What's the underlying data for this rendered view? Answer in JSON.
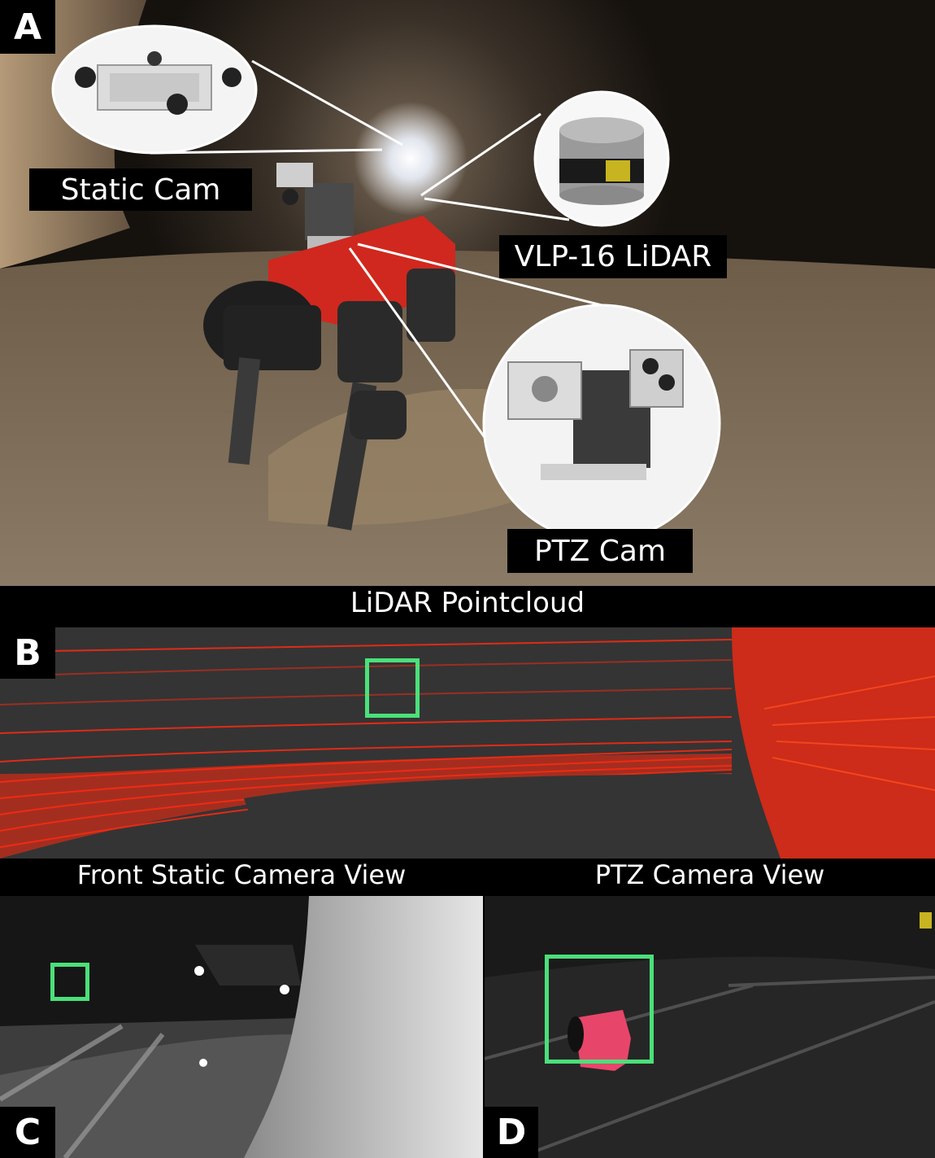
{
  "panels": {
    "a": {
      "letter": "A"
    },
    "b": {
      "letter": "B"
    },
    "c": {
      "letter": "C"
    },
    "d": {
      "letter": "D"
    }
  },
  "callouts": {
    "static_cam": "Static Cam",
    "lidar": "VLP-16 LiDAR",
    "ptz_cam": "PTZ Cam"
  },
  "banners": {
    "lidar_pointcloud": "LiDAR Pointcloud",
    "front_static_view": "Front Static Camera View",
    "ptz_view": "PTZ Camera View"
  },
  "colors": {
    "highlight_box": "#4be07a",
    "lidar_points": "#ff2a10",
    "robot_body": "#d0281e"
  }
}
